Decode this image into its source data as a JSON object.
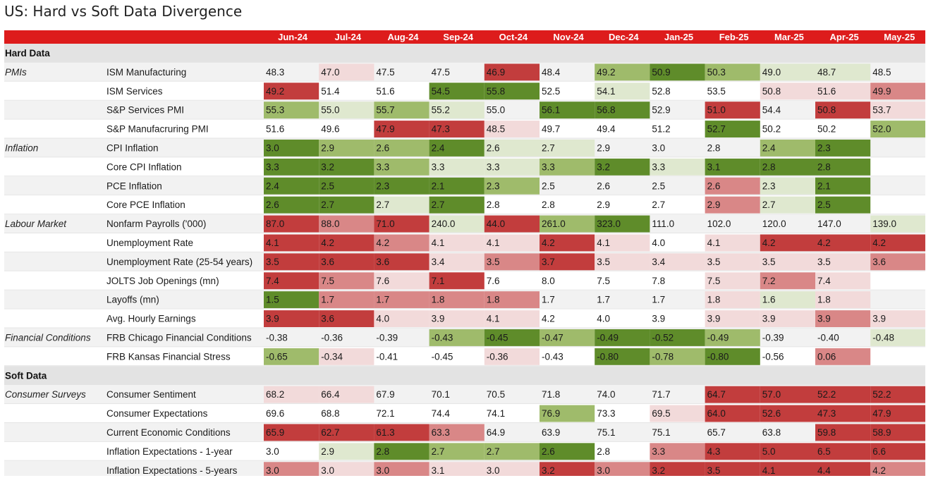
{
  "title": "US: Hard vs Soft Data Divergence",
  "colors": {
    "header_bg": "#dd1c1c",
    "header_text": "#ffffff",
    "section_bg": "#e3e3e3",
    "row_bg_even": "#f2f2f2",
    "row_bg_odd": "#ffffff",
    "green_strong": "#5f8c2a",
    "green_mid": "#9fbb6b",
    "green_light": "#dfe8cf",
    "red_strong": "#c23d3d",
    "red_mid": "#d98787",
    "red_light": "#f2dada"
  },
  "chart_data": {
    "type": "heatmap",
    "title": "US: Hard vs Soft Data Divergence",
    "columns": [
      "Jun-24",
      "Jul-24",
      "Aug-24",
      "Sep-24",
      "Oct-24",
      "Nov-24",
      "Dec-24",
      "Jan-25",
      "Feb-25",
      "Mar-25",
      "Apr-25",
      "May-25"
    ],
    "sections": [
      {
        "name": "Hard Data",
        "groups": [
          {
            "name": "PMIs",
            "rows": [
              {
                "label": "ISM Manufacturing",
                "values": [
                  "48.3",
                  "47.0",
                  "47.5",
                  "47.5",
                  "46.9",
                  "48.4",
                  "49.2",
                  "50.9",
                  "50.3",
                  "49.0",
                  "48.7",
                  "48.5"
                ],
                "shades": [
                  0,
                  -1,
                  0,
                  0,
                  -3,
                  0,
                  2,
                  3,
                  2,
                  1,
                  1,
                  0
                ]
              },
              {
                "label": "ISM Services",
                "values": [
                  "49.2",
                  "51.4",
                  "51.6",
                  "54.5",
                  "55.8",
                  "52.5",
                  "54.1",
                  "52.8",
                  "53.5",
                  "50.8",
                  "51.6",
                  "49.9"
                ],
                "shades": [
                  -3,
                  0,
                  0,
                  3,
                  3,
                  0,
                  1,
                  0,
                  0,
                  -1,
                  -1,
                  -2
                ]
              },
              {
                "label": "S&P Services PMI",
                "values": [
                  "55.3",
                  "55.0",
                  "55.7",
                  "55.2",
                  "55.0",
                  "56.1",
                  "56.8",
                  "52.9",
                  "51.0",
                  "54.4",
                  "50.8",
                  "53.7"
                ],
                "shades": [
                  2,
                  1,
                  2,
                  1,
                  0,
                  3,
                  3,
                  0,
                  -3,
                  0,
                  -3,
                  -1
                ]
              },
              {
                "label": "S&P Manufacruring PMI",
                "values": [
                  "51.6",
                  "49.6",
                  "47.9",
                  "47.3",
                  "48.5",
                  "49.7",
                  "49.4",
                  "51.2",
                  "52.7",
                  "50.2",
                  "50.2",
                  "52.0"
                ],
                "shades": [
                  0,
                  0,
                  -3,
                  -3,
                  -1,
                  0,
                  0,
                  0,
                  3,
                  0,
                  0,
                  2
                ]
              }
            ]
          },
          {
            "name": "Inflation",
            "rows": [
              {
                "label": "CPI Inflation",
                "values": [
                  "3.0",
                  "2.9",
                  "2.6",
                  "2.4",
                  "2.6",
                  "2.7",
                  "2.9",
                  "3.0",
                  "2.8",
                  "2.4",
                  "2.3",
                  ""
                ],
                "shades": [
                  3,
                  2,
                  2,
                  3,
                  1,
                  1,
                  0,
                  0,
                  0,
                  2,
                  3,
                  0
                ]
              },
              {
                "label": "Core CPI Inflation",
                "values": [
                  "3.3",
                  "3.2",
                  "3.3",
                  "3.3",
                  "3.3",
                  "3.3",
                  "3.2",
                  "3.3",
                  "3.1",
                  "2.8",
                  "2.8",
                  ""
                ],
                "shades": [
                  3,
                  3,
                  2,
                  1,
                  1,
                  2,
                  3,
                  1,
                  3,
                  3,
                  3,
                  0
                ]
              },
              {
                "label": "PCE Inflation",
                "values": [
                  "2.4",
                  "2.5",
                  "2.3",
                  "2.1",
                  "2.3",
                  "2.5",
                  "2.6",
                  "2.5",
                  "2.6",
                  "2.3",
                  "2.1",
                  ""
                ],
                "shades": [
                  3,
                  3,
                  3,
                  3,
                  2,
                  0,
                  0,
                  0,
                  -2,
                  1,
                  3,
                  0
                ]
              },
              {
                "label": "Core PCE Inflation",
                "values": [
                  "2.6",
                  "2.7",
                  "2.7",
                  "2.7",
                  "2.8",
                  "2.8",
                  "2.9",
                  "2.7",
                  "2.9",
                  "2.7",
                  "2.5",
                  ""
                ],
                "shades": [
                  3,
                  3,
                  1,
                  3,
                  0,
                  0,
                  0,
                  0,
                  -2,
                  1,
                  3,
                  0
                ]
              }
            ]
          },
          {
            "name": "Labour Market",
            "rows": [
              {
                "label": "Nonfarm Payrolls ('000)",
                "values": [
                  "87.0",
                  "88.0",
                  "71.0",
                  "240.0",
                  "44.0",
                  "261.0",
                  "323.0",
                  "111.0",
                  "102.0",
                  "120.0",
                  "147.0",
                  "139.0"
                ],
                "shades": [
                  -3,
                  -2,
                  -3,
                  1,
                  -3,
                  2,
                  3,
                  0,
                  0,
                  0,
                  0,
                  1
                ]
              },
              {
                "label": "Unemployment Rate",
                "values": [
                  "4.1",
                  "4.2",
                  "4.2",
                  "4.1",
                  "4.1",
                  "4.2",
                  "4.1",
                  "4.0",
                  "4.1",
                  "4.2",
                  "4.2",
                  "4.2"
                ],
                "shades": [
                  -3,
                  -3,
                  -2,
                  -1,
                  -1,
                  -3,
                  -1,
                  0,
                  -1,
                  -3,
                  -3,
                  -3
                ]
              },
              {
                "label": "Unemployment Rate (25-54 years)",
                "values": [
                  "3.5",
                  "3.6",
                  "3.6",
                  "3.4",
                  "3.5",
                  "3.7",
                  "3.5",
                  "3.4",
                  "3.5",
                  "3.5",
                  "3.5",
                  "3.6"
                ],
                "shades": [
                  -3,
                  -3,
                  -3,
                  -1,
                  -2,
                  -3,
                  -1,
                  -1,
                  -1,
                  -1,
                  -1,
                  -2
                ]
              },
              {
                "label": "JOLTS Job Openings (mn)",
                "values": [
                  "7.4",
                  "7.5",
                  "7.6",
                  "7.1",
                  "7.6",
                  "8.0",
                  "7.5",
                  "7.8",
                  "7.5",
                  "7.2",
                  "7.4",
                  ""
                ],
                "shades": [
                  -3,
                  -2,
                  -1,
                  -3,
                  0,
                  0,
                  0,
                  0,
                  -1,
                  -2,
                  -1,
                  0
                ]
              },
              {
                "label": "Layoffs (mn)",
                "values": [
                  "1.5",
                  "1.7",
                  "1.7",
                  "1.8",
                  "1.8",
                  "1.7",
                  "1.7",
                  "1.7",
                  "1.8",
                  "1.6",
                  "1.8",
                  ""
                ],
                "shades": [
                  3,
                  -2,
                  -2,
                  -2,
                  -2,
                  0,
                  0,
                  0,
                  -1,
                  1,
                  -1,
                  0
                ]
              },
              {
                "label": "Avg. Hourly Earnings",
                "values": [
                  "3.9",
                  "3.6",
                  "4.0",
                  "3.9",
                  "4.1",
                  "4.2",
                  "4.0",
                  "3.9",
                  "3.9",
                  "3.9",
                  "3.9",
                  "3.9"
                ],
                "shades": [
                  -3,
                  -3,
                  -1,
                  -1,
                  -1,
                  0,
                  0,
                  0,
                  -1,
                  -1,
                  -2,
                  -1
                ]
              }
            ]
          },
          {
            "name": "Financial Conditions",
            "rows": [
              {
                "label": "FRB Chicago Financial Conditions",
                "values": [
                  "-0.38",
                  "-0.36",
                  "-0.39",
                  "-0.43",
                  "-0.45",
                  "-0.47",
                  "-0.49",
                  "-0.52",
                  "-0.49",
                  "-0.39",
                  "-0.40",
                  "-0.48"
                ],
                "shades": [
                  0,
                  0,
                  0,
                  2,
                  3,
                  2,
                  3,
                  3,
                  2,
                  0,
                  0,
                  1
                ]
              },
              {
                "label": "FRB Kansas Financial Stress",
                "values": [
                  "-0.65",
                  "-0.34",
                  "-0.41",
                  "-0.45",
                  "-0.36",
                  "-0.43",
                  "-0.80",
                  "-0.78",
                  "-0.80",
                  "-0.56",
                  "0.06",
                  ""
                ],
                "shades": [
                  2,
                  -1,
                  0,
                  0,
                  -1,
                  0,
                  3,
                  2,
                  3,
                  0,
                  -2,
                  0
                ]
              }
            ]
          }
        ]
      },
      {
        "name": "Soft Data",
        "groups": [
          {
            "name": "Consumer Surveys",
            "rows": [
              {
                "label": "Consumer Sentiment",
                "values": [
                  "68.2",
                  "66.4",
                  "67.9",
                  "70.1",
                  "70.5",
                  "71.8",
                  "74.0",
                  "71.7",
                  "64.7",
                  "57.0",
                  "52.2",
                  "52.2"
                ],
                "shades": [
                  -1,
                  -1,
                  0,
                  0,
                  0,
                  0,
                  0,
                  0,
                  -3,
                  -3,
                  -3,
                  -3
                ]
              },
              {
                "label": "Consumer Expectations",
                "values": [
                  "69.6",
                  "68.8",
                  "72.1",
                  "74.4",
                  "74.1",
                  "76.9",
                  "73.3",
                  "69.5",
                  "64.0",
                  "52.6",
                  "47.3",
                  "47.9"
                ],
                "shades": [
                  0,
                  0,
                  0,
                  0,
                  0,
                  2,
                  0,
                  -1,
                  -3,
                  -3,
                  -3,
                  -3
                ]
              },
              {
                "label": "Current Economic Conditions",
                "values": [
                  "65.9",
                  "62.7",
                  "61.3",
                  "63.3",
                  "64.9",
                  "63.9",
                  "75.1",
                  "75.1",
                  "65.7",
                  "63.8",
                  "59.8",
                  "58.9"
                ],
                "shades": [
                  -3,
                  -3,
                  -3,
                  -2,
                  0,
                  0,
                  0,
                  0,
                  0,
                  0,
                  -3,
                  -3
                ]
              },
              {
                "label": "Inflation Expectations - 1-year",
                "values": [
                  "3.0",
                  "2.9",
                  "2.8",
                  "2.7",
                  "2.7",
                  "2.6",
                  "2.8",
                  "3.3",
                  "4.3",
                  "5.0",
                  "6.5",
                  "6.6"
                ],
                "shades": [
                  0,
                  1,
                  3,
                  2,
                  2,
                  3,
                  0,
                  -2,
                  -3,
                  -3,
                  -3,
                  -3
                ]
              },
              {
                "label": "Inflation Expectations - 5-years",
                "values": [
                  "3.0",
                  "3.0",
                  "3.0",
                  "3.1",
                  "3.0",
                  "3.2",
                  "3.0",
                  "3.2",
                  "3.5",
                  "4.1",
                  "4.4",
                  "4.2"
                ],
                "shades": [
                  -2,
                  -1,
                  -2,
                  -1,
                  -1,
                  -3,
                  -2,
                  -3,
                  -3,
                  -3,
                  -3,
                  -2
                ]
              }
            ]
          }
        ]
      }
    ]
  }
}
